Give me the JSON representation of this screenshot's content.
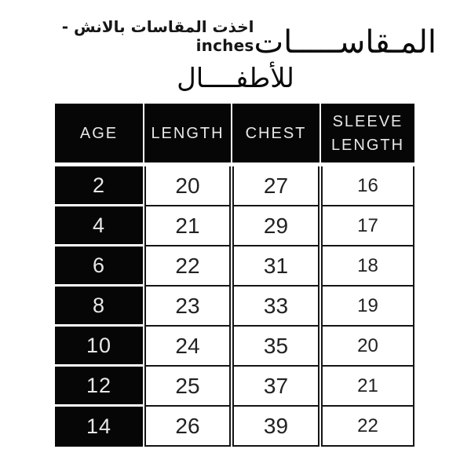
{
  "chart_data": {
    "type": "table",
    "title": "المـقاســـــات",
    "subtitle": "اخذت المقاسات بالانش - inches",
    "subtitle2": "للأطفــــال",
    "units": "inches",
    "columns": [
      "AGE",
      "LENGTH",
      "CHEST",
      "SLEEVE LENGTH"
    ],
    "rows": [
      [
        "2",
        "20",
        "27",
        "16"
      ],
      [
        "4",
        "21",
        "29",
        "17"
      ],
      [
        "6",
        "22",
        "31",
        "18"
      ],
      [
        "8",
        "23",
        "33",
        "19"
      ],
      [
        "10",
        "24",
        "35",
        "20"
      ],
      [
        "12",
        "25",
        "37",
        "21"
      ],
      [
        "14",
        "26",
        "39",
        "22"
      ]
    ]
  },
  "colors": {
    "cell_black": "#060606",
    "text_on_black": "#e8e8e8",
    "text_dark": "#222222",
    "background": "#ffffff"
  }
}
